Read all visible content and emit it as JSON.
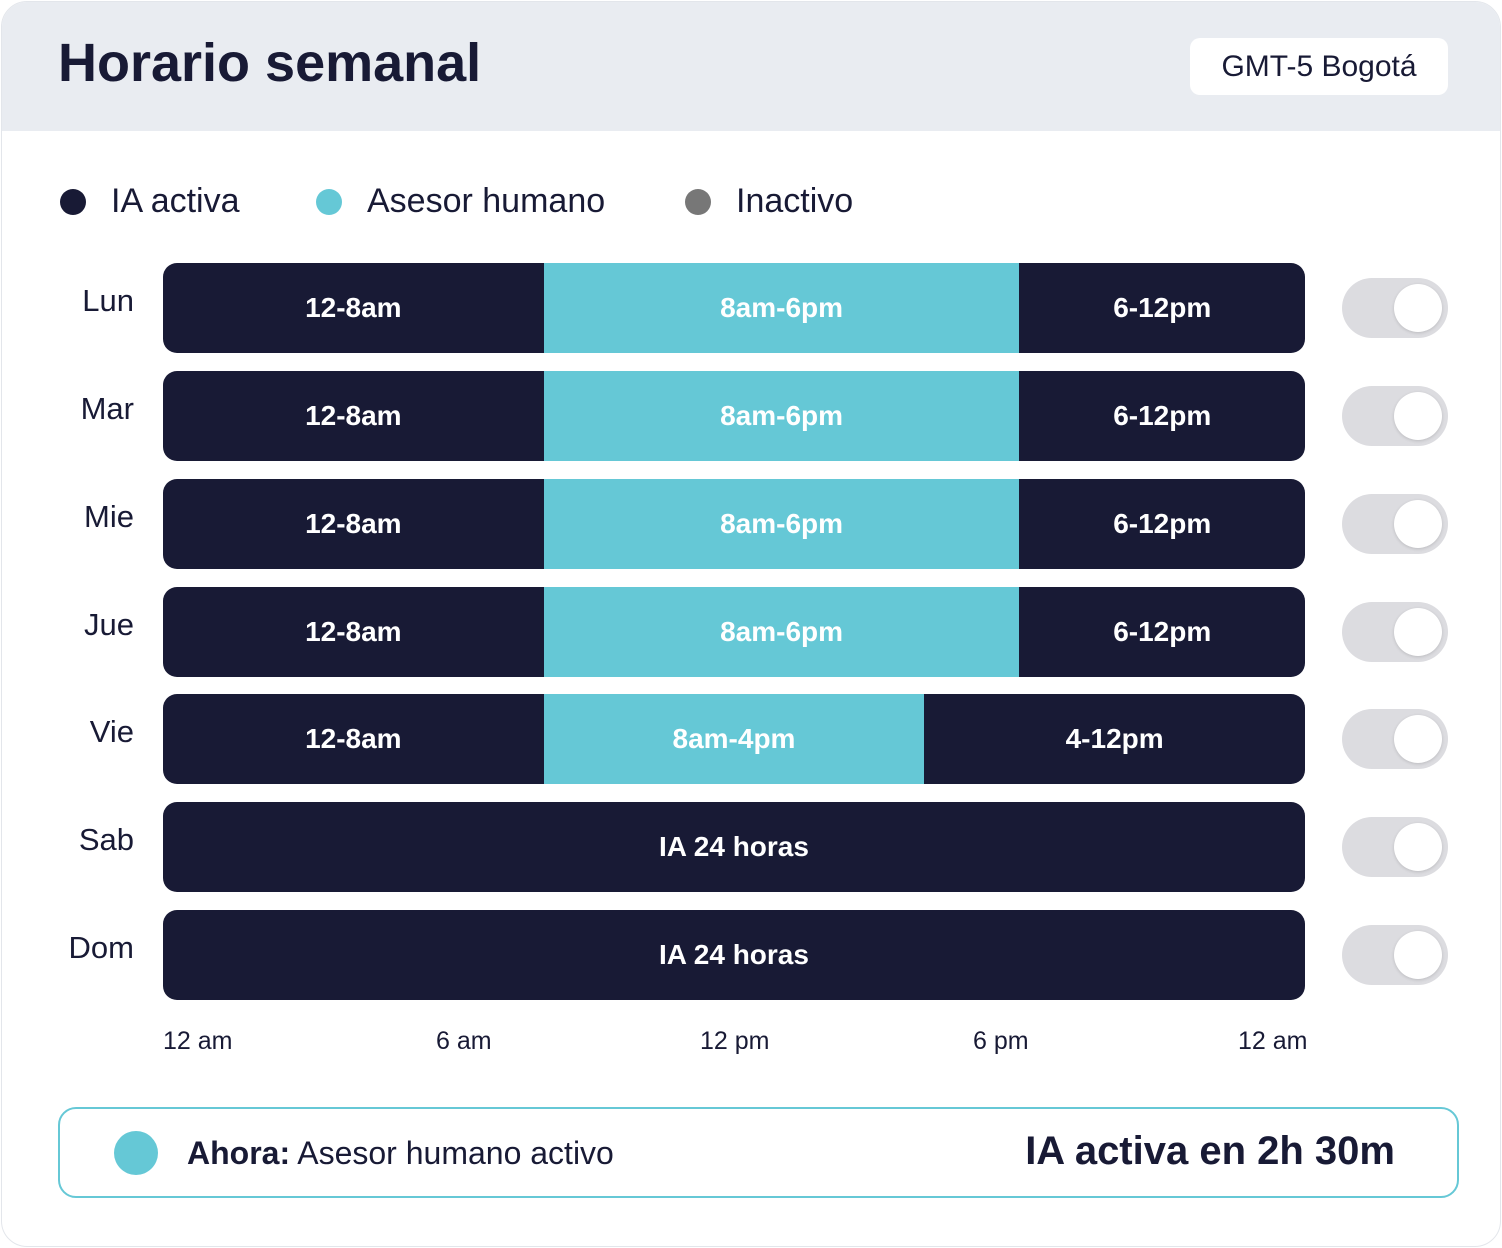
{
  "header": {
    "title": "Horario semanal",
    "timezone": "GMT-5 Bogotá"
  },
  "legend": [
    {
      "label": "IA activa",
      "color": "#181a35"
    },
    {
      "label": "Asesor humano",
      "color": "#65c8d6"
    },
    {
      "label": "Inactivo",
      "color": "#777777"
    }
  ],
  "colors": {
    "ia": "#181a35",
    "human": "#65c8d6"
  },
  "days": [
    {
      "label": "Lun",
      "enabled": true,
      "segments": [
        {
          "label": "12-8am",
          "type": "ia",
          "start": 0,
          "end": 8
        },
        {
          "label": "8am-6pm",
          "type": "human",
          "start": 8,
          "end": 18
        },
        {
          "label": "6-12pm",
          "type": "ia",
          "start": 18,
          "end": 24
        }
      ]
    },
    {
      "label": "Mar",
      "enabled": true,
      "segments": [
        {
          "label": "12-8am",
          "type": "ia",
          "start": 0,
          "end": 8
        },
        {
          "label": "8am-6pm",
          "type": "human",
          "start": 8,
          "end": 18
        },
        {
          "label": "6-12pm",
          "type": "ia",
          "start": 18,
          "end": 24
        }
      ]
    },
    {
      "label": "Mie",
      "enabled": true,
      "segments": [
        {
          "label": "12-8am",
          "type": "ia",
          "start": 0,
          "end": 8
        },
        {
          "label": "8am-6pm",
          "type": "human",
          "start": 8,
          "end": 18
        },
        {
          "label": "6-12pm",
          "type": "ia",
          "start": 18,
          "end": 24
        }
      ]
    },
    {
      "label": "Jue",
      "enabled": true,
      "segments": [
        {
          "label": "12-8am",
          "type": "ia",
          "start": 0,
          "end": 8
        },
        {
          "label": "8am-6pm",
          "type": "human",
          "start": 8,
          "end": 18
        },
        {
          "label": "6-12pm",
          "type": "ia",
          "start": 18,
          "end": 24
        }
      ]
    },
    {
      "label": "Vie",
      "enabled": true,
      "segments": [
        {
          "label": "12-8am",
          "type": "ia",
          "start": 0,
          "end": 8
        },
        {
          "label": "8am-4pm",
          "type": "human",
          "start": 8,
          "end": 16
        },
        {
          "label": "4-12pm",
          "type": "ia",
          "start": 16,
          "end": 24
        }
      ]
    },
    {
      "label": "Sab",
      "enabled": true,
      "segments": [
        {
          "label": "IA 24 horas",
          "type": "ia",
          "start": 0,
          "end": 24
        }
      ]
    },
    {
      "label": "Dom",
      "enabled": true,
      "segments": [
        {
          "label": "IA 24 horas",
          "type": "ia",
          "start": 0,
          "end": 24
        }
      ]
    }
  ],
  "axis": [
    "12 am",
    "6 am",
    "12 pm",
    "6 pm",
    "12 am"
  ],
  "status": {
    "prefix": "Ahora",
    "separator": ":",
    "text": " Asesor humano activo",
    "next": "IA activa en 2h 30m"
  }
}
